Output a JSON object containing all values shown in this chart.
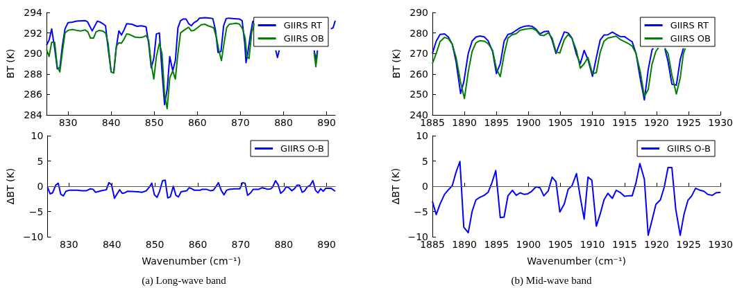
{
  "chart_data": [
    {
      "type": "line",
      "ylabel": "BT (K)",
      "xlim": [
        825,
        892
      ],
      "xticks": [
        830,
        840,
        850,
        860,
        870,
        880,
        890
      ],
      "ylim": [
        284,
        294
      ],
      "yticks": [
        284,
        286,
        288,
        290,
        292,
        294
      ],
      "grid": false,
      "legend": "top right",
      "marker": "none",
      "series": [
        {
          "name": "GIIRS RT",
          "color": "#0000ff",
          "x": [
            825,
            825.6,
            826.2,
            826.9,
            827.5,
            828.1,
            828.7,
            829.3,
            830,
            831,
            832,
            834,
            834.5,
            835.6,
            836.8,
            837.5,
            838.1,
            838.7,
            839.3,
            840,
            840.6,
            841.2,
            841.8,
            842.4,
            843,
            843.6,
            844.8,
            846,
            847,
            848.1,
            848.7,
            849.3,
            849.9,
            850.5,
            851.2,
            851.8,
            852.4,
            853,
            853.6,
            854.3,
            854.9,
            855.5,
            856.1,
            856.7,
            857.4,
            858,
            858.6,
            859.2,
            860,
            860.5,
            861.8,
            863,
            863.6,
            864.2,
            864.8,
            865.5,
            866.1,
            866.7,
            867.3,
            868.6,
            869.8,
            870.4,
            871,
            871.3,
            871.7,
            872.3,
            872.9,
            875,
            878.2,
            878.6,
            879,
            880,
            887.1,
            887.5,
            887.9,
            890,
            891,
            891.5,
            892
          ],
          "values": [
            290.8,
            291.3,
            292.4,
            290.5,
            288.5,
            288.6,
            290.8,
            292.4,
            293,
            293.05,
            293.15,
            293.2,
            293.1,
            292.2,
            293.15,
            293.05,
            292.9,
            292.7,
            290.5,
            288.2,
            288.1,
            290.6,
            292.2,
            291.8,
            292.3,
            292.9,
            292.85,
            292.65,
            292.7,
            292.6,
            291,
            288.6,
            289.5,
            291.9,
            292,
            288.3,
            285,
            286.5,
            289.7,
            288.3,
            289.3,
            292.5,
            293.2,
            293.35,
            293.35,
            292.9,
            292.7,
            293,
            293.2,
            293.45,
            293.5,
            293.45,
            293.4,
            292.3,
            290.1,
            290.2,
            292.7,
            293.4,
            293.45,
            293.4,
            293.35,
            293.2,
            291,
            289.1,
            290,
            291.8,
            293.2,
            null,
            290.3,
            289.6,
            290.3,
            null,
            290.3,
            289.4,
            290.3,
            null,
            292.4,
            292.5,
            293.2
          ]
        },
        {
          "name": "GIIRS OB",
          "color": "#008000",
          "x": [
            825,
            825.6,
            826.2,
            826.9,
            827.5,
            828.1,
            828.7,
            829.3,
            830,
            831,
            832,
            833,
            834,
            834.6,
            835.2,
            835.9,
            836.5,
            837.2,
            838,
            838.7,
            839.3,
            840,
            840.6,
            841.2,
            841.8,
            842.4,
            843,
            843.6,
            844.3,
            845.5,
            846.6,
            847.4,
            848.1,
            848.7,
            849.3,
            849.9,
            850.5,
            851.2,
            851.8,
            852.4,
            853,
            853.6,
            854.3,
            854.9,
            855.5,
            856.1,
            856.7,
            857.4,
            858,
            858.6,
            859.2,
            860,
            860.9,
            861.8,
            862.5,
            863.2,
            863.8,
            864.4,
            865,
            865.6,
            866.2,
            866.8,
            867.4,
            868.3,
            869,
            869.8,
            870.5,
            871.1,
            871.5,
            872,
            872.6,
            873.2,
            875,
            887.1,
            887.5,
            887.9
          ],
          "values": [
            290.4,
            289.7,
            291.1,
            291.1,
            288.7,
            288.2,
            290.2,
            292,
            292.25,
            292.35,
            292.25,
            292.2,
            292.3,
            292.1,
            291.5,
            291.5,
            292.1,
            292.25,
            292.2,
            292,
            291,
            288.2,
            288.1,
            290.7,
            291.05,
            291,
            291.4,
            291.9,
            291.85,
            291.6,
            291.55,
            291.6,
            291.75,
            291.3,
            289,
            287.5,
            289.7,
            291,
            290,
            286,
            284.6,
            287.6,
            288.3,
            287.5,
            290,
            292,
            292.2,
            292.4,
            292.55,
            292.2,
            292.25,
            292.5,
            292.8,
            292.85,
            292.7,
            292.6,
            292.5,
            291.6,
            290.3,
            289.3,
            291,
            292.5,
            292.85,
            292.9,
            292.95,
            292.85,
            292.4,
            291.5,
            289.7,
            289.5,
            292,
            292.9,
            null,
            290.1,
            288.7,
            290.1
          ]
        }
      ]
    },
    {
      "type": "line",
      "ylabel": "BT (K)",
      "xlim": [
        1885,
        1930
      ],
      "xticks": [
        1885,
        1890,
        1895,
        1900,
        1905,
        1910,
        1915,
        1920,
        1925,
        1930
      ],
      "ylim": [
        240,
        290
      ],
      "yticks": [
        240,
        250,
        260,
        270,
        280,
        290
      ],
      "grid": false,
      "legend": "top right",
      "marker": "none",
      "series": [
        {
          "name": "GIIRS RT",
          "color": "#0000ff",
          "x": [
            1885,
            1885.6,
            1886.2,
            1886.9,
            1887.5,
            1888.1,
            1888.7,
            1889.4,
            1889.9,
            1890.6,
            1891.2,
            1891.8,
            1892.4,
            1893.1,
            1893.7,
            1894.4,
            1895,
            1895.6,
            1896.2,
            1896.8,
            1897.4,
            1898.1,
            1898.7,
            1899.3,
            1900,
            1900.6,
            1901.2,
            1901.8,
            1902.4,
            1903.1,
            1903.7,
            1904.3,
            1904.9,
            1905.6,
            1906.2,
            1906.8,
            1907.5,
            1908.1,
            1908.7,
            1909.3,
            1910,
            1910.6,
            1911.2,
            1911.8,
            1912.4,
            1913.1,
            1913.7,
            1914.3,
            1915,
            1915.6,
            1916.2,
            1916.8,
            1917.5,
            1918.1,
            1918.7,
            1919.3,
            1919.5,
            1920.5,
            1921.3,
            1921.8,
            1922.4,
            1923.1,
            1923.7,
            1924.2
          ],
          "values": [
            270,
            276,
            279.3,
            279.5,
            278,
            274.5,
            266,
            250.5,
            256,
            270,
            276,
            278,
            278.5,
            278.1,
            276.2,
            271,
            260.2,
            265,
            276,
            279.3,
            279.8,
            281.3,
            282.5,
            283.2,
            283.5,
            283.2,
            281.8,
            279.5,
            280.6,
            280.9,
            276.5,
            270,
            275,
            280.5,
            280,
            277.5,
            269.5,
            265,
            271.5,
            267,
            258.8,
            268,
            276.5,
            279,
            279.1,
            280.4,
            279.3,
            278.3,
            278.2,
            276.9,
            275.7,
            270,
            257,
            247.3,
            262,
            271.8,
            272.5,
            null,
            272.5,
            266,
            255,
            254.5,
            267,
            272.5
          ]
        },
        {
          "name": "GIIRS OB",
          "color": "#008000",
          "x": [
            1885,
            1885.6,
            1886.2,
            1886.9,
            1887.5,
            1888.1,
            1888.7,
            1889.4,
            1890,
            1890.6,
            1891.2,
            1891.8,
            1892.4,
            1893.1,
            1893.7,
            1894.4,
            1895,
            1895.6,
            1896.2,
            1896.8,
            1897.4,
            1898.1,
            1898.7,
            1899.3,
            1900,
            1900.6,
            1901.2,
            1901.8,
            1902.4,
            1903.1,
            1903.7,
            1904.3,
            1904.9,
            1905.6,
            1906.2,
            1906.8,
            1907.5,
            1908.1,
            1908.7,
            1909.3,
            1910,
            1910.6,
            1911.2,
            1911.8,
            1912.4,
            1913.1,
            1913.7,
            1914.3,
            1915,
            1915.6,
            1916.2,
            1916.8,
            1917.5,
            1918.1,
            1918.7,
            1919.3,
            1919.9,
            1920.3,
            1920.8,
            1921.3,
            1921.8,
            1922.4,
            1923.1,
            1923.7,
            1924.2,
            1924.5
          ],
          "values": [
            265,
            270,
            275.8,
            277.8,
            277.2,
            274.5,
            268,
            256,
            248,
            261,
            271,
            275.2,
            276.2,
            276,
            274.8,
            271.5,
            262.5,
            258.7,
            269.5,
            277.5,
            279,
            279.7,
            281.3,
            281.7,
            282.1,
            282.2,
            281.3,
            279,
            278.7,
            280.1,
            277.5,
            270.8,
            270.2,
            276.8,
            279.2,
            277.3,
            271.5,
            262.8,
            265,
            268,
            260.1,
            260.6,
            270.5,
            276,
            277.5,
            278,
            278.4,
            276.9,
            275.8,
            274.8,
            273.6,
            270,
            260.5,
            249,
            252.3,
            264.8,
            271,
            272.7,
            null,
            272.5,
            270,
            259.5,
            250.2,
            258,
            270,
            272.5
          ]
        }
      ]
    },
    {
      "type": "line",
      "ylabel": "ΔBT (K)",
      "xlabel": "Wavenumber (cm⁻¹)",
      "xlim": [
        825,
        892
      ],
      "xticks": [
        830,
        840,
        850,
        860,
        870,
        880,
        890
      ],
      "ylim": [
        -10,
        10
      ],
      "yticks": [
        -10,
        -5,
        0,
        5,
        10
      ],
      "grid": false,
      "legend": "top right",
      "marker": "none",
      "ref_lines": [
        {
          "axis": "y",
          "value": 0,
          "color": "#555555"
        }
      ],
      "annotations": [
        "(a) Long-wave band"
      ],
      "series": [
        {
          "name": "GIIRS O-B",
          "color": "#0000ff",
          "x": [
            825,
            825.6,
            826.2,
            826.9,
            827.5,
            828.1,
            828.7,
            829.3,
            830,
            832,
            833,
            834,
            835,
            835.6,
            836.2,
            837.5,
            838.7,
            839.3,
            839.9,
            840.6,
            841.2,
            841.8,
            842.4,
            843,
            843.6,
            846,
            847,
            848,
            848.7,
            849.3,
            849.9,
            850.5,
            851.1,
            851.8,
            852.4,
            853,
            853.6,
            854.3,
            854.9,
            855.5,
            856.1,
            857.4,
            858,
            858.6,
            859.2,
            860.5,
            861,
            862,
            863,
            863.6,
            864.2,
            864.8,
            865.5,
            866.1,
            866.7,
            867.3,
            868.6,
            869.8,
            870.4,
            871,
            871.6,
            872.3,
            872.9,
            874.2,
            875,
            875.5,
            876.2,
            877,
            877.4,
            878.1,
            878.7,
            879.3,
            880,
            880.6,
            881.2,
            881.9,
            882.5,
            883.1,
            883.7,
            884.3,
            884.9,
            885.5,
            886.1,
            886.8,
            887.4,
            888,
            888.6,
            889.2,
            889.8,
            891,
            892
          ],
          "values": [
            -0.2,
            -1.5,
            -1.3,
            0.2,
            0.6,
            -1.6,
            -1.9,
            -1,
            -0.8,
            -0.8,
            -0.9,
            -0.9,
            -0.5,
            -0.6,
            -1.2,
            -0.9,
            -0.7,
            0.7,
            0.3,
            -2.4,
            -1.5,
            -0.7,
            -1.4,
            -1.3,
            -1,
            -1.1,
            -1.2,
            -0.9,
            -0.2,
            0.6,
            -1.7,
            -2.2,
            -1,
            1.1,
            1.2,
            -2.3,
            -2.1,
            0,
            -1.8,
            -2.1,
            -1.1,
            -0.9,
            -0.3,
            -0.5,
            -0.8,
            -0.8,
            -0.6,
            -0.6,
            -0.9,
            -0.8,
            -0.1,
            0.7,
            -0.9,
            -1.7,
            -0.8,
            -0.6,
            -0.5,
            -0.5,
            0.7,
            0.6,
            -1.8,
            -1.3,
            -0.6,
            -0.6,
            -0.3,
            -0.4,
            -0.6,
            -0.5,
            -0.2,
            1.1,
            0.3,
            -1.4,
            -0.9,
            -0.1,
            -0.3,
            -0.9,
            -0.5,
            0.2,
            0.2,
            -1.2,
            -0.9,
            -0.1,
            0.1,
            1.1,
            -0.8,
            -1.3,
            -0.5,
            -1,
            -0.4,
            -0.4,
            -1
          ]
        }
      ]
    },
    {
      "type": "line",
      "ylabel": "ΔBT (K)",
      "xlabel": "Wavenumber (cm⁻¹)",
      "xlim": [
        1885,
        1930
      ],
      "xticks": [
        1885,
        1890,
        1895,
        1900,
        1905,
        1910,
        1915,
        1920,
        1925,
        1930
      ],
      "ylim": [
        -10,
        10
      ],
      "yticks": [
        -10,
        -5,
        0,
        5,
        10
      ],
      "grid": false,
      "legend": "top right",
      "marker": "none",
      "ref_lines": [
        {
          "axis": "y",
          "value": 0,
          "color": "#555555"
        }
      ],
      "annotations": [
        "(b) Mid-wave band"
      ],
      "series": [
        {
          "name": "GIIRS O-B",
          "color": "#0000ff",
          "x": [
            1885,
            1885.6,
            1886.2,
            1886.9,
            1887.5,
            1888.1,
            1888.7,
            1889.3,
            1889.9,
            1890.6,
            1891.2,
            1891.8,
            1892.4,
            1893.1,
            1893.7,
            1894.3,
            1894.9,
            1895.6,
            1896.2,
            1896.8,
            1897.5,
            1898.1,
            1898.7,
            1899.3,
            1899.9,
            1900.5,
            1901.2,
            1901.8,
            1902.4,
            1903.1,
            1903.7,
            1904.3,
            1904.9,
            1905.6,
            1906.2,
            1906.8,
            1907.5,
            1908.1,
            1908.7,
            1909.3,
            1909.9,
            1910.6,
            1911.2,
            1911.8,
            1912.4,
            1913.1,
            1913.7,
            1914.3,
            1915,
            1915.6,
            1916.2,
            1916.8,
            1917.4,
            1918.1,
            1918.7,
            1919.3,
            1919.9,
            1920.6,
            1921.2,
            1921.8,
            1922.4,
            1923,
            1923.7,
            1924.3,
            1924.9,
            1925.5,
            1926.1,
            1926.8,
            1927.4,
            1928,
            1928.7,
            1929.3,
            1930
          ],
          "values": [
            -3,
            -5.6,
            -3.5,
            -1.6,
            -0.7,
            0.1,
            2.8,
            4.9,
            -8.1,
            -9.2,
            -5,
            -2.7,
            -2.2,
            -1.8,
            -1.2,
            0.7,
            3.1,
            -6.2,
            -6.1,
            -1.9,
            -0.8,
            -1.8,
            -1.3,
            -1.6,
            -1.5,
            -1,
            -0.1,
            -0.3,
            -1.9,
            -0.9,
            1.8,
            0.9,
            -5.1,
            -3.5,
            -0.6,
            0.1,
            2.5,
            -2.2,
            -6.5,
            1.8,
            1.2,
            -7.9,
            -5.5,
            -2.7,
            -1.4,
            -2.4,
            -0.8,
            -1.2,
            -2,
            -1.9,
            -1.9,
            0.7,
            4.5,
            1.4,
            -9.7,
            -6.7,
            -3.6,
            -2.7,
            -0.2,
            3.7,
            3.7,
            -4.5,
            -9.7,
            -5.5,
            -2.8,
            -1.9,
            -0.4,
            -0.8,
            -1,
            -1.6,
            -1.8,
            -1.3,
            -1.2
          ]
        }
      ]
    }
  ]
}
